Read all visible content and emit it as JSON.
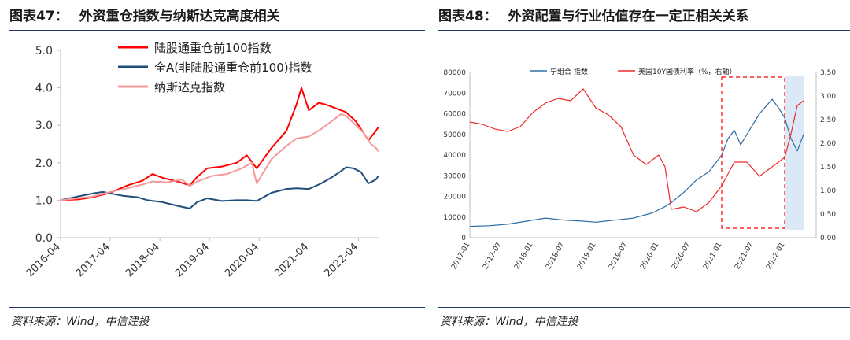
{
  "left": {
    "title_num": "图表47：",
    "title_text": "外资重仓指数与纳斯达克高度相关",
    "source": "资料来源：Wind，中信建投"
  },
  "right": {
    "title_num": "图表48：",
    "title_text": "外资配置与行业估值存在一定正相关关系",
    "source": "资料来源：Wind，中信建投"
  },
  "chart_data": [
    {
      "type": "line",
      "title": "",
      "xlabel": "",
      "ylabel": "",
      "x_ticks": [
        "2016-04",
        "2017-04",
        "2018-04",
        "2019-04",
        "2020-04",
        "2021-04",
        "2022-04"
      ],
      "y_ticks": [
        "0.0",
        "1.0",
        "2.0",
        "3.0",
        "4.0",
        "5.0"
      ],
      "ylim": [
        0,
        5
      ],
      "legend_position": "top-center",
      "series": [
        {
          "name": "陆股通重仓前100指数",
          "color": "#ff0000",
          "x": [
            2016.25,
            2016.6,
            2016.9,
            2017.25,
            2017.6,
            2017.9,
            2018.1,
            2018.3,
            2018.6,
            2018.85,
            2019.0,
            2019.2,
            2019.5,
            2019.8,
            2020.0,
            2020.2,
            2020.5,
            2020.8,
            2021.0,
            2021.1,
            2021.25,
            2021.45,
            2021.6,
            2021.8,
            2022.0,
            2022.2,
            2022.3,
            2022.45,
            2022.6,
            2022.65
          ],
          "y": [
            1.0,
            1.02,
            1.08,
            1.2,
            1.4,
            1.52,
            1.7,
            1.6,
            1.5,
            1.4,
            1.62,
            1.85,
            1.9,
            2.0,
            2.2,
            1.85,
            2.4,
            2.85,
            3.55,
            4.0,
            3.4,
            3.6,
            3.55,
            3.45,
            3.35,
            3.1,
            2.9,
            2.6,
            2.85,
            2.95
          ]
        },
        {
          "name": "全A(非陆股通重仓前100)指数",
          "color": "#1f4e79",
          "x": [
            2016.25,
            2016.6,
            2016.9,
            2017.1,
            2017.25,
            2017.5,
            2017.8,
            2018.0,
            2018.3,
            2018.6,
            2018.85,
            2019.0,
            2019.2,
            2019.5,
            2019.8,
            2020.0,
            2020.2,
            2020.5,
            2020.8,
            2021.0,
            2021.25,
            2021.5,
            2021.7,
            2021.9,
            2022.0,
            2022.15,
            2022.3,
            2022.45,
            2022.6,
            2022.65
          ],
          "y": [
            1.0,
            1.1,
            1.18,
            1.22,
            1.18,
            1.12,
            1.08,
            1.0,
            0.95,
            0.85,
            0.78,
            0.95,
            1.05,
            0.98,
            1.0,
            1.0,
            0.98,
            1.2,
            1.3,
            1.32,
            1.3,
            1.45,
            1.6,
            1.78,
            1.88,
            1.85,
            1.75,
            1.45,
            1.55,
            1.65
          ]
        },
        {
          "name": "纳斯达克指数",
          "color": "#f59a9a",
          "x": [
            2016.25,
            2016.6,
            2016.9,
            2017.25,
            2017.6,
            2017.9,
            2018.1,
            2018.4,
            2018.7,
            2018.85,
            2019.0,
            2019.3,
            2019.6,
            2019.9,
            2020.1,
            2020.2,
            2020.5,
            2020.8,
            2021.0,
            2021.25,
            2021.5,
            2021.7,
            2021.9,
            2022.0,
            2022.2,
            2022.35,
            2022.5,
            2022.6,
            2022.65
          ],
          "y": [
            1.0,
            1.05,
            1.1,
            1.22,
            1.32,
            1.42,
            1.5,
            1.48,
            1.55,
            1.38,
            1.5,
            1.65,
            1.7,
            1.85,
            2.0,
            1.45,
            2.1,
            2.45,
            2.65,
            2.7,
            2.9,
            3.1,
            3.3,
            3.25,
            3.0,
            2.8,
            2.5,
            2.4,
            2.3
          ]
        }
      ]
    },
    {
      "type": "line",
      "title": "",
      "xlabel": "",
      "ylabel": "",
      "x_ticks": [
        "2017-01",
        "2017-07",
        "2018-01",
        "2018-07",
        "2019-01",
        "2019-07",
        "2020-01",
        "2020-07",
        "2021-01",
        "2021-07",
        "2022-01"
      ],
      "y_left_ticks": [
        "0",
        "10000",
        "20000",
        "30000",
        "40000",
        "50000",
        "60000",
        "70000",
        "80000"
      ],
      "y_right_ticks": [
        "0.00",
        "0.50",
        "1.00",
        "1.50",
        "2.00",
        "2.50",
        "3.00",
        "3.50"
      ],
      "ylim_left": [
        0,
        80000
      ],
      "ylim_right": [
        0,
        3.5
      ],
      "legend_position": "top",
      "series": [
        {
          "name": "宁组合 指数",
          "color": "#2e6da4",
          "axis": "left",
          "x": [
            2017.0,
            2017.3,
            2017.6,
            2017.9,
            2018.2,
            2018.5,
            2018.8,
            2019.0,
            2019.3,
            2019.6,
            2019.9,
            2020.1,
            2020.2,
            2020.4,
            2020.6,
            2020.8,
            2021.0,
            2021.1,
            2021.2,
            2021.3,
            2021.5,
            2021.6,
            2021.8,
            2021.9,
            2022.0,
            2022.1,
            2022.2,
            2022.3
          ],
          "y": [
            5500,
            5800,
            6500,
            8000,
            9500,
            8500,
            8000,
            7500,
            8500,
            9500,
            12000,
            15000,
            17000,
            22000,
            28000,
            32000,
            40000,
            48000,
            52000,
            45000,
            55000,
            60000,
            67000,
            63000,
            58000,
            48000,
            42000,
            50000
          ]
        },
        {
          "name": "美国10Y国债利率（%，右轴）",
          "color": "#ee2b2b",
          "axis": "right",
          "x": [
            2017.0,
            2017.2,
            2017.4,
            2017.6,
            2017.8,
            2018.0,
            2018.2,
            2018.4,
            2018.6,
            2018.8,
            2019.0,
            2019.2,
            2019.4,
            2019.6,
            2019.8,
            2020.0,
            2020.1,
            2020.2,
            2020.4,
            2020.6,
            2020.8,
            2021.0,
            2021.2,
            2021.4,
            2021.6,
            2021.8,
            2022.0,
            2022.1,
            2022.2,
            2022.3
          ],
          "y": [
            2.45,
            2.4,
            2.3,
            2.25,
            2.35,
            2.65,
            2.85,
            2.95,
            2.9,
            3.15,
            2.75,
            2.6,
            2.35,
            1.75,
            1.55,
            1.75,
            1.5,
            0.6,
            0.65,
            0.55,
            0.75,
            1.1,
            1.6,
            1.6,
            1.3,
            1.5,
            1.7,
            2.2,
            2.8,
            2.9
          ]
        }
      ],
      "annotations": [
        {
          "type": "dashed-box",
          "color": "#ff0000",
          "x_range": [
            2021.0,
            2022.0
          ]
        },
        {
          "type": "shaded-region",
          "color": "#dbe8f5",
          "x_range": [
            2022.0,
            2022.3
          ]
        }
      ]
    }
  ]
}
